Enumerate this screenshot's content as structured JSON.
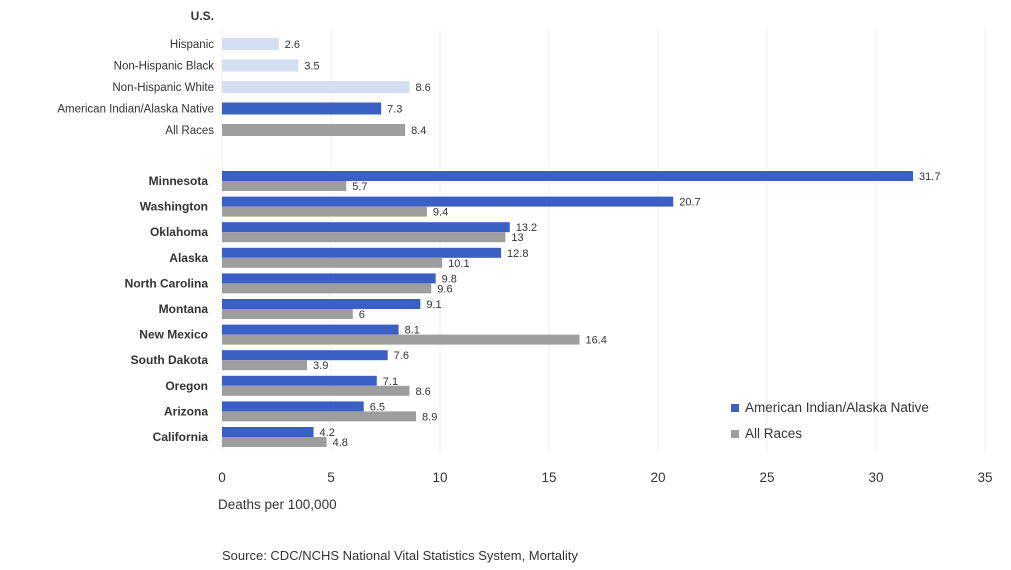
{
  "chart_data": {
    "type": "bar",
    "orientation": "horizontal",
    "colors": {
      "aian": "#3a5fc5",
      "all": "#9e9e9e",
      "us_light": "#d3def3"
    },
    "us_panel": {
      "title": "U.S.",
      "bars": [
        {
          "label": "Hispanic",
          "value": 2.6,
          "value_label": "2.6",
          "color_key": "us_light"
        },
        {
          "label": "Non-Hispanic Black",
          "value": 3.5,
          "value_label": "3.5",
          "color_key": "us_light"
        },
        {
          "label": "Non-Hispanic White",
          "value": 8.6,
          "value_label": "8.6",
          "color_key": "us_light"
        },
        {
          "label": "American Indian/Alaska Native",
          "value": 7.3,
          "value_label": "7.3",
          "color_key": "aian"
        },
        {
          "label": "All Races",
          "value": 8.4,
          "value_label": "8.4",
          "color_key": "all"
        }
      ]
    },
    "categories": [
      "Minnesota",
      "Washington",
      "Oklahoma",
      "Alaska",
      "North Carolina",
      "Montana",
      "New Mexico",
      "South Dakota",
      "Oregon",
      "Arizona",
      "California"
    ],
    "series": [
      {
        "name": "American Indian/Alaska Native",
        "color_key": "aian",
        "values": [
          31.7,
          20.7,
          13.2,
          12.8,
          9.8,
          9.1,
          8.1,
          7.6,
          7.1,
          6.5,
          4.2
        ],
        "value_labels": [
          "31.7",
          "20.7",
          "13.2",
          "12.8",
          "9.8",
          "9.1",
          "8.1",
          "7.6",
          "7.1",
          "6.5",
          "4.2"
        ]
      },
      {
        "name": "All Races",
        "color_key": "all",
        "values": [
          5.7,
          9.4,
          13,
          10.1,
          9.6,
          6,
          16.4,
          3.9,
          8.6,
          8.9,
          4.8
        ],
        "value_labels": [
          "5.7",
          "9.4",
          "13",
          "10.1",
          "9.6",
          "6",
          "16.4",
          "3.9",
          "8.6",
          "8.9",
          "4.8"
        ]
      }
    ],
    "xlim": [
      0,
      35
    ],
    "xticks": [
      "0",
      "5",
      "10",
      "15",
      "20",
      "25",
      "30",
      "35"
    ],
    "xlabel": "Deaths per 100,000",
    "grid": true,
    "legend_position": "bottom-right",
    "source": "Source: CDC/NCHS National Vital Statistics System, Mortality"
  }
}
